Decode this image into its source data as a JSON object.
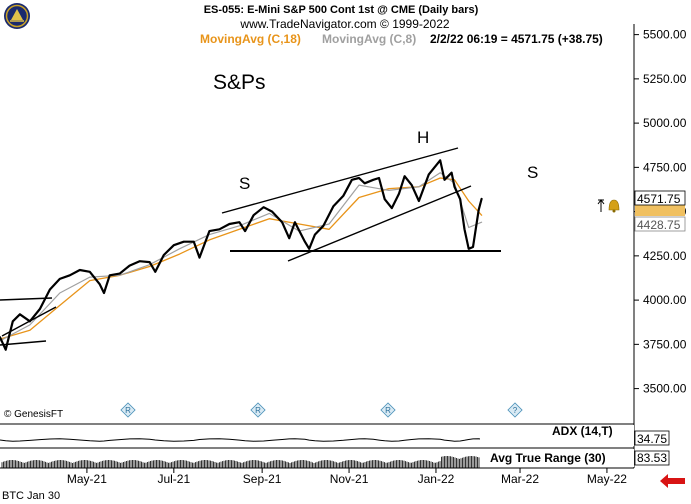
{
  "header": {
    "title": "ES-055:  E-Mini S&P 500 Cont 1st @ CME  (Daily bars)",
    "url": "www.TradeNavigator.com © 1999-2022",
    "ma18_label": "MovingAvg (C,18)",
    "ma8_label": "MovingAvg (C,8)",
    "readout": "2/2/22 06:19 = 4571.75 (+38.75)"
  },
  "colors": {
    "ma18": "#e8941a",
    "ma8": "#a0a0a0",
    "price": "#000000",
    "marker_red": "#d81414",
    "badge_fill": "#d9eaf4"
  },
  "annotations": {
    "title": "S&Ps",
    "left_shoulder": "S",
    "head": "H",
    "right_shoulder": "S"
  },
  "credit": "© GenesisFT",
  "footer": {
    "contract": "BTC Jan 30"
  },
  "icons": {
    "logo": "navigator-globe-icon",
    "alarm": "bell-icon",
    "event": "r-diamond-icon",
    "unknown_event": "question-diamond-icon"
  },
  "chart_data": {
    "type": "line",
    "title": "S&Ps",
    "xlabel": "",
    "ylabel": "",
    "ylim": [
      3300,
      5560
    ],
    "y_ticks": [
      "5500.00",
      "5250.00",
      "5000.00",
      "4750.00",
      "4500.00",
      "4250.00",
      "4000.00",
      "3750.00",
      "3500.00"
    ],
    "y_tick_values": [
      5500,
      5250,
      5000,
      4750,
      4500,
      4250,
      4000,
      3750,
      3500
    ],
    "x_ticks": [
      "May-21",
      "Jul-21",
      "Sep-21",
      "Nov-21",
      "Jan-22",
      "Mar-22",
      "May-22"
    ],
    "x_tick_dates": [
      "2021-05-01",
      "2021-07-01",
      "2021-09-01",
      "2021-11-01",
      "2022-01-01",
      "2022-03-01",
      "2022-05-01"
    ],
    "x_range": [
      "2021-03-01",
      "2022-05-20"
    ],
    "series": [
      {
        "name": "ES-055",
        "x": [
          "2021-03-01",
          "2021-03-05",
          "2021-03-10",
          "2021-03-15",
          "2021-03-22",
          "2021-03-29",
          "2021-04-05",
          "2021-04-12",
          "2021-04-19",
          "2021-04-26",
          "2021-05-03",
          "2021-05-10",
          "2021-05-13",
          "2021-05-17",
          "2021-05-24",
          "2021-05-31",
          "2021-06-07",
          "2021-06-14",
          "2021-06-18",
          "2021-06-24",
          "2021-07-01",
          "2021-07-08",
          "2021-07-15",
          "2021-07-19",
          "2021-07-26",
          "2021-08-02",
          "2021-08-09",
          "2021-08-16",
          "2021-08-20",
          "2021-08-26",
          "2021-09-02",
          "2021-09-08",
          "2021-09-15",
          "2021-09-20",
          "2021-09-24",
          "2021-10-01",
          "2021-10-04",
          "2021-10-08",
          "2021-10-14",
          "2021-10-21",
          "2021-10-28",
          "2021-11-03",
          "2021-11-08",
          "2021-11-12",
          "2021-11-18",
          "2021-11-22",
          "2021-11-26",
          "2021-12-01",
          "2021-12-06",
          "2021-12-10",
          "2021-12-15",
          "2021-12-20",
          "2021-12-27",
          "2022-01-04",
          "2022-01-07",
          "2022-01-12",
          "2022-01-14",
          "2022-01-18",
          "2022-01-21",
          "2022-01-24",
          "2022-01-27",
          "2022-01-31",
          "2022-02-02"
        ],
        "y": [
          3790,
          3720,
          3880,
          3920,
          3880,
          3950,
          4060,
          4120,
          4140,
          4170,
          4160,
          4090,
          4040,
          4140,
          4150,
          4195,
          4220,
          4215,
          4160,
          4255,
          4310,
          4330,
          4330,
          4240,
          4390,
          4400,
          4430,
          4440,
          4390,
          4480,
          4525,
          4500,
          4440,
          4350,
          4440,
          4330,
          4290,
          4370,
          4420,
          4530,
          4590,
          4680,
          4690,
          4660,
          4680,
          4690,
          4570,
          4520,
          4600,
          4700,
          4650,
          4560,
          4710,
          4790,
          4680,
          4720,
          4640,
          4570,
          4400,
          4290,
          4300,
          4510,
          4571.75
        ]
      },
      {
        "name": "MovingAvg (C,18)",
        "x": [
          "2021-03-01",
          "2021-03-22",
          "2021-04-12",
          "2021-05-03",
          "2021-05-24",
          "2021-06-14",
          "2021-07-05",
          "2021-07-26",
          "2021-08-16",
          "2021-09-06",
          "2021-09-27",
          "2021-10-18",
          "2021-11-08",
          "2021-11-29",
          "2021-12-20",
          "2022-01-04",
          "2022-01-14",
          "2022-01-24",
          "2022-02-02"
        ],
        "y": [
          3780,
          3830,
          3970,
          4110,
          4140,
          4190,
          4260,
          4340,
          4400,
          4460,
          4430,
          4400,
          4580,
          4630,
          4640,
          4690,
          4680,
          4560,
          4480
        ]
      },
      {
        "name": "MovingAvg (C,8)",
        "x": [
          "2021-03-01",
          "2021-03-22",
          "2021-04-12",
          "2021-05-03",
          "2021-05-24",
          "2021-06-14",
          "2021-07-05",
          "2021-07-26",
          "2021-08-16",
          "2021-09-06",
          "2021-09-27",
          "2021-10-18",
          "2021-11-08",
          "2021-11-29",
          "2021-12-20",
          "2022-01-04",
          "2022-01-14",
          "2022-01-24",
          "2022-02-02"
        ],
        "y": [
          3770,
          3860,
          4040,
          4130,
          4140,
          4200,
          4290,
          4370,
          4420,
          4490,
          4390,
          4430,
          4650,
          4620,
          4640,
          4720,
          4660,
          4410,
          4440
        ]
      }
    ],
    "last_price": "4571.75",
    "markers": [
      "4571.75",
      "4428.75"
    ],
    "lower_panels": [
      {
        "name": "ADX (14,T)",
        "last": "34.75"
      },
      {
        "name": "Avg True Range (30)",
        "last": "83.53"
      }
    ],
    "grid": false
  }
}
